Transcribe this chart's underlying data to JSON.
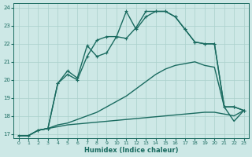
{
  "xlabel": "Humidex (Indice chaleur)",
  "bg_color": "#cde8e6",
  "grid_color": "#aad0cc",
  "line_color": "#1a6b60",
  "xlim_min": -0.5,
  "xlim_max": 23.5,
  "ylim_min": 16.75,
  "ylim_max": 24.25,
  "xticks": [
    0,
    1,
    2,
    3,
    4,
    5,
    6,
    7,
    8,
    9,
    10,
    11,
    12,
    13,
    14,
    15,
    16,
    17,
    18,
    19,
    20,
    21,
    22,
    23
  ],
  "yticks": [
    17,
    18,
    19,
    20,
    21,
    22,
    23,
    24
  ],
  "lines": [
    {
      "x": [
        0,
        1,
        2,
        3,
        4,
        5,
        6,
        7,
        8,
        9,
        10,
        11,
        12,
        13,
        14,
        15,
        16,
        17,
        18,
        19,
        20,
        21,
        22,
        23
      ],
      "y": [
        16.9,
        16.9,
        17.2,
        17.3,
        17.4,
        17.5,
        17.55,
        17.6,
        17.65,
        17.7,
        17.75,
        17.8,
        17.85,
        17.9,
        17.95,
        18.0,
        18.05,
        18.1,
        18.15,
        18.2,
        18.2,
        18.1,
        18.0,
        18.3
      ],
      "marker": false,
      "lw": 1.0
    },
    {
      "x": [
        0,
        1,
        2,
        3,
        4,
        5,
        6,
        7,
        8,
        9,
        10,
        11,
        12,
        13,
        14,
        15,
        16,
        17,
        18,
        19,
        20,
        21,
        22,
        23
      ],
      "y": [
        16.9,
        16.9,
        17.2,
        17.3,
        17.5,
        17.6,
        17.8,
        18.0,
        18.2,
        18.5,
        18.8,
        19.1,
        19.5,
        19.9,
        20.3,
        20.6,
        20.8,
        20.9,
        21.0,
        20.8,
        20.7,
        18.5,
        17.7,
        18.3
      ],
      "marker": false,
      "lw": 1.0
    },
    {
      "x": [
        2,
        3,
        4,
        5,
        6,
        7,
        8,
        9,
        10,
        11,
        12,
        13,
        14,
        15,
        16,
        17,
        18,
        19,
        20,
        21,
        22,
        23
      ],
      "y": [
        17.2,
        17.3,
        19.8,
        20.5,
        20.1,
        21.9,
        21.3,
        21.5,
        22.4,
        23.8,
        22.8,
        23.5,
        23.8,
        23.8,
        23.5,
        22.8,
        22.1,
        22.0,
        22.0,
        18.5,
        18.5,
        18.3
      ],
      "marker": true,
      "lw": 1.0
    },
    {
      "x": [
        0,
        1,
        2,
        3,
        4,
        5,
        6,
        7,
        8,
        9,
        10,
        11,
        12,
        13,
        14,
        15,
        16,
        17,
        18,
        19,
        20,
        21,
        22,
        23
      ],
      "y": [
        16.9,
        16.9,
        17.2,
        17.3,
        19.8,
        20.3,
        20.0,
        21.3,
        22.2,
        22.4,
        22.4,
        22.3,
        22.9,
        23.8,
        23.8,
        23.8,
        23.5,
        22.8,
        22.1,
        22.0,
        22.0,
        18.5,
        18.5,
        18.3
      ],
      "marker": true,
      "lw": 1.0
    }
  ]
}
